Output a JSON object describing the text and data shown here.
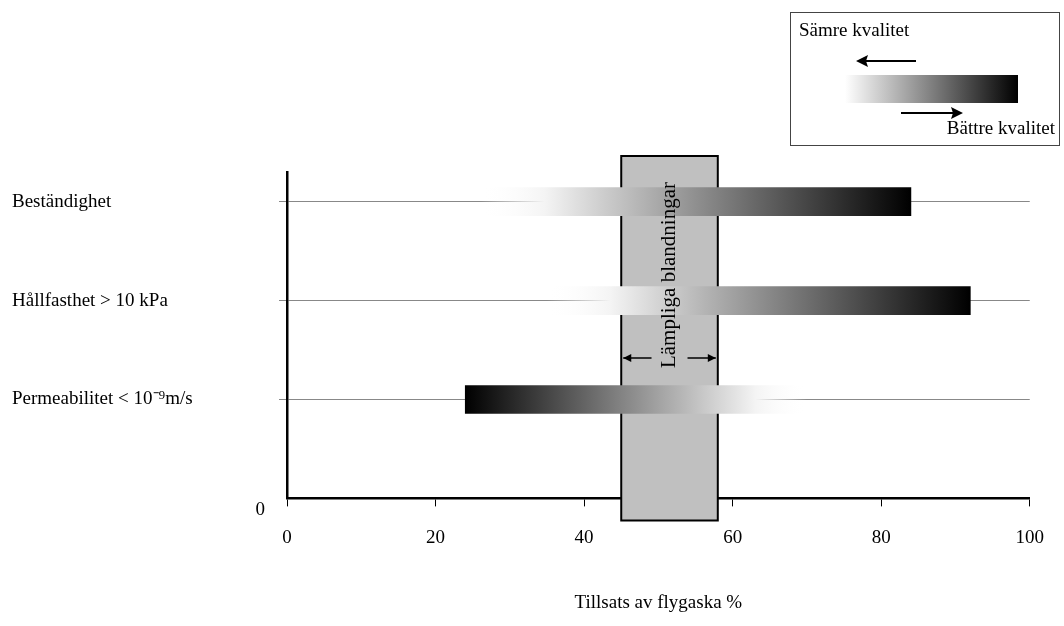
{
  "chart_data": {
    "type": "bar",
    "orientation": "horizontal",
    "xlabel": "Tillsats av flygaska %",
    "categories": [
      "Beständighet",
      "Hållfasthet > 10 kPa",
      "Permeabilitet < 10⁻⁹m/s"
    ],
    "values": [
      58,
      57,
      -46
    ],
    "base": [
      26,
      35,
      70
    ],
    "colors": [
      "#000000",
      "#000000",
      "#000000"
    ],
    "xlim": [
      0,
      100
    ],
    "xticks": [
      0,
      20,
      40,
      60,
      80,
      100
    ],
    "grid": "y",
    "bands": [
      {
        "axis": "x",
        "from": 45,
        "to": 58,
        "label": "Lämpliga blandningar",
        "color": "#c0c0c0"
      }
    ],
    "annotations": [
      "0",
      "Sämre kvalitet",
      "Bättre kvalitet"
    ]
  }
}
